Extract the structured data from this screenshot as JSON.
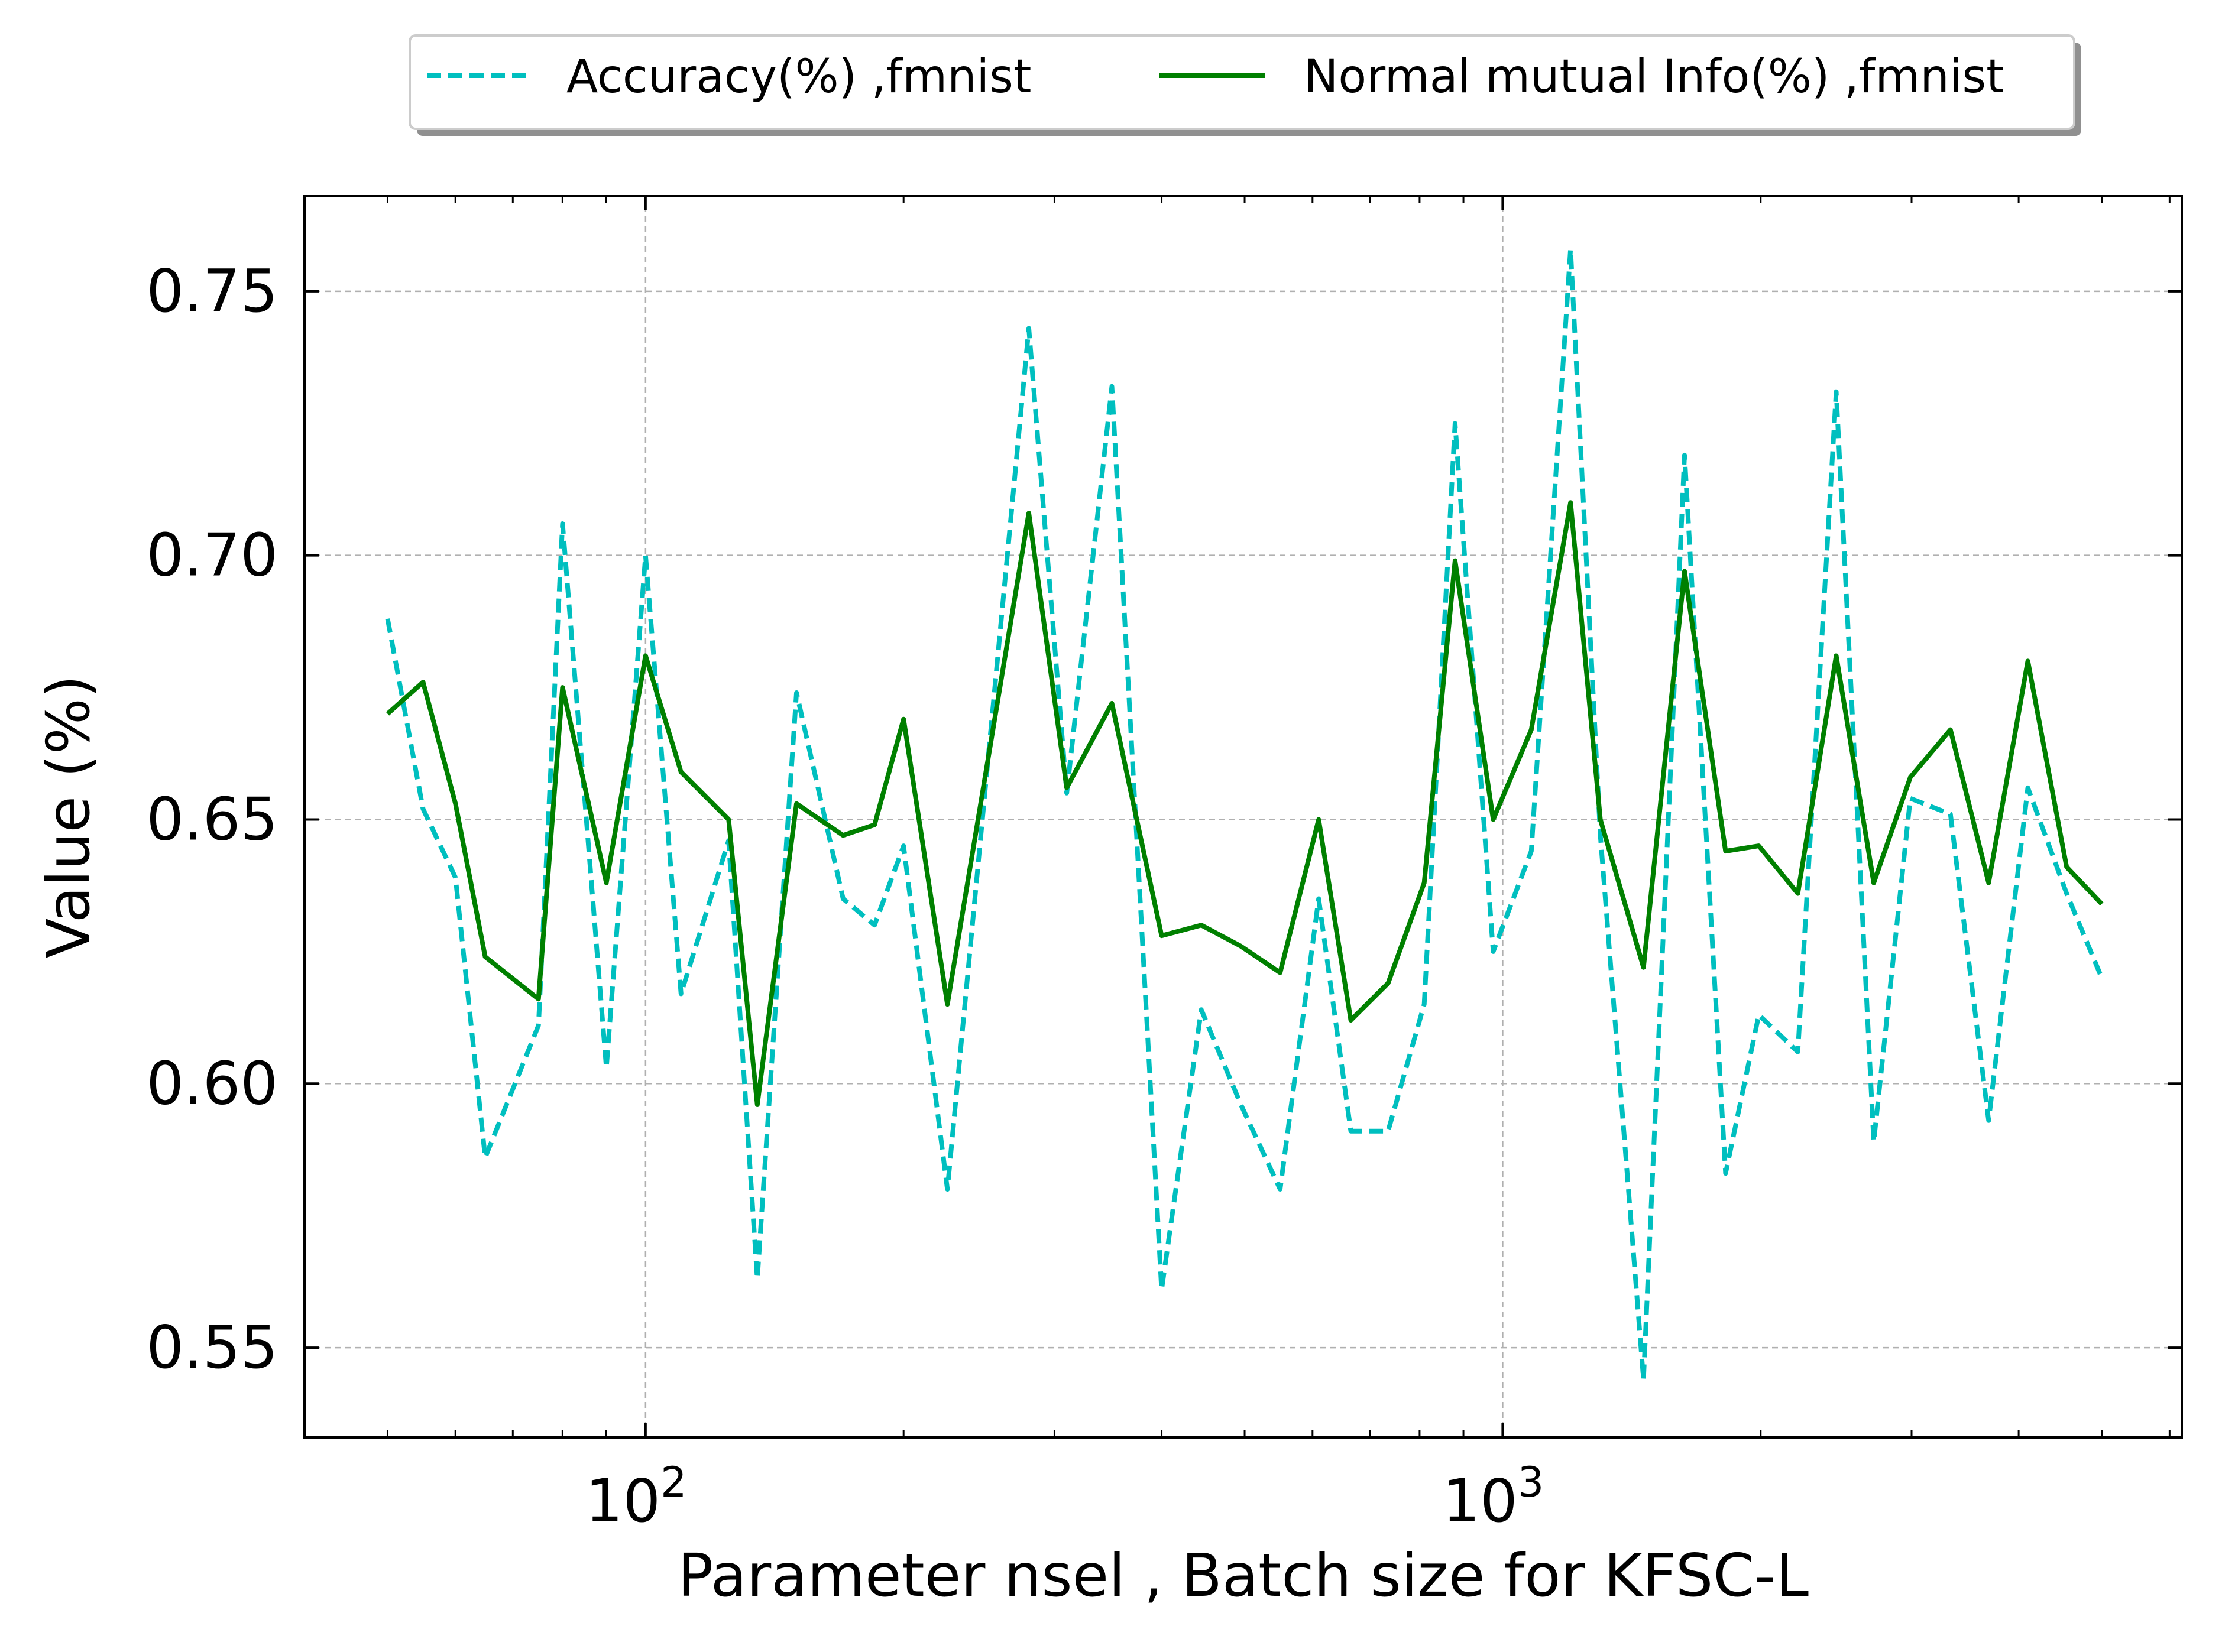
{
  "chart_data": {
    "type": "line",
    "title": "",
    "xlabel": "Parameter nsel , Batch size for KFSC-L",
    "ylabel": "Value (%)",
    "xscale": "log",
    "xlim": [
      40,
      6200
    ],
    "ylim": [
      0.533,
      0.768
    ],
    "yticks": [
      0.55,
      0.6,
      0.65,
      0.7,
      0.75
    ],
    "ytick_labels": [
      "0.55",
      "0.60",
      "0.65",
      "0.70",
      "0.75"
    ],
    "xticks": [
      100,
      1000
    ],
    "xtick_base": [
      "10",
      "10"
    ],
    "xtick_exponent": [
      "2",
      "3"
    ],
    "grid": true,
    "legend_position": "top-center-outside",
    "x": [
      50,
      55,
      60,
      65,
      75,
      80,
      90,
      100,
      110,
      125,
      135,
      150,
      170,
      185,
      200,
      225,
      280,
      310,
      350,
      400,
      445,
      495,
      550,
      610,
      665,
      735,
      810,
      880,
      975,
      1080,
      1200,
      1300,
      1460,
      1630,
      1820,
      1990,
      2210,
      2450,
      2710,
      2990,
      3330,
      3690,
      4100,
      4550,
      5000
    ],
    "series": [
      {
        "name": "Accuracy(%) ,fmnist",
        "color": "#00bfbf",
        "style": "dashed",
        "values": [
          0.688,
          0.652,
          0.639,
          0.586,
          0.611,
          0.706,
          0.603,
          0.7,
          0.617,
          0.646,
          0.563,
          0.674,
          0.635,
          0.63,
          0.645,
          0.58,
          0.743,
          0.655,
          0.732,
          0.561,
          0.614,
          0.596,
          0.58,
          0.635,
          0.591,
          0.591,
          0.615,
          0.725,
          0.625,
          0.644,
          0.758,
          0.647,
          0.544,
          0.719,
          0.583,
          0.613,
          0.606,
          0.731,
          0.589,
          0.654,
          0.651,
          0.593,
          0.656,
          0.636,
          0.62
        ]
      },
      {
        "name": "Normal mutual Info(%) ,fmnist",
        "color": "#008000",
        "style": "solid",
        "values": [
          0.67,
          0.676,
          0.653,
          0.624,
          0.616,
          0.675,
          0.638,
          0.681,
          0.659,
          0.65,
          0.596,
          0.653,
          0.647,
          0.649,
          0.669,
          0.615,
          0.708,
          0.656,
          0.672,
          0.628,
          0.63,
          0.626,
          0.621,
          0.65,
          0.612,
          0.619,
          0.638,
          0.699,
          0.65,
          0.667,
          0.71,
          0.65,
          0.622,
          0.697,
          0.644,
          0.645,
          0.636,
          0.681,
          0.638,
          0.658,
          0.667,
          0.638,
          0.68,
          0.641,
          0.634
        ]
      }
    ]
  }
}
